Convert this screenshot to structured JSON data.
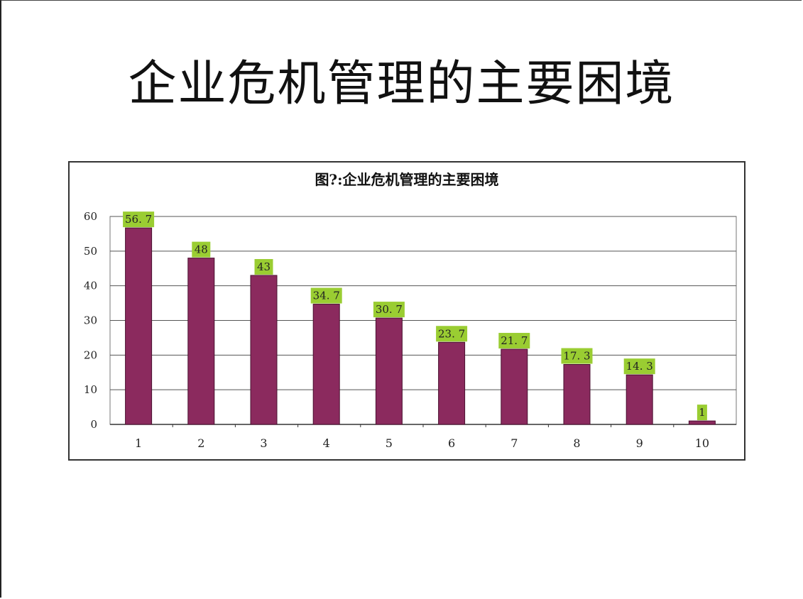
{
  "slide": {
    "title": "企业危机管理的主要困境"
  },
  "chart_data": {
    "type": "bar",
    "title": "图?:企业危机管理的主要困境",
    "categories": [
      "1",
      "2",
      "3",
      "4",
      "5",
      "6",
      "7",
      "8",
      "9",
      "10"
    ],
    "values": [
      56.7,
      48,
      43,
      34.7,
      30.7,
      23.7,
      21.7,
      17.3,
      14.3,
      1
    ],
    "value_labels": [
      "56. 7",
      "48",
      "43",
      "34. 7",
      "30. 7",
      "23. 7",
      "21. 7",
      "17. 3",
      "14. 3",
      "1"
    ],
    "yticks": [
      "0",
      "10",
      "20",
      "30",
      "40",
      "50",
      "60"
    ],
    "ylim": [
      0,
      60
    ],
    "grid": true,
    "bar_color": "#8b2a5e",
    "label_bg_color": "#9acd32",
    "xlabel": "",
    "ylabel": ""
  }
}
